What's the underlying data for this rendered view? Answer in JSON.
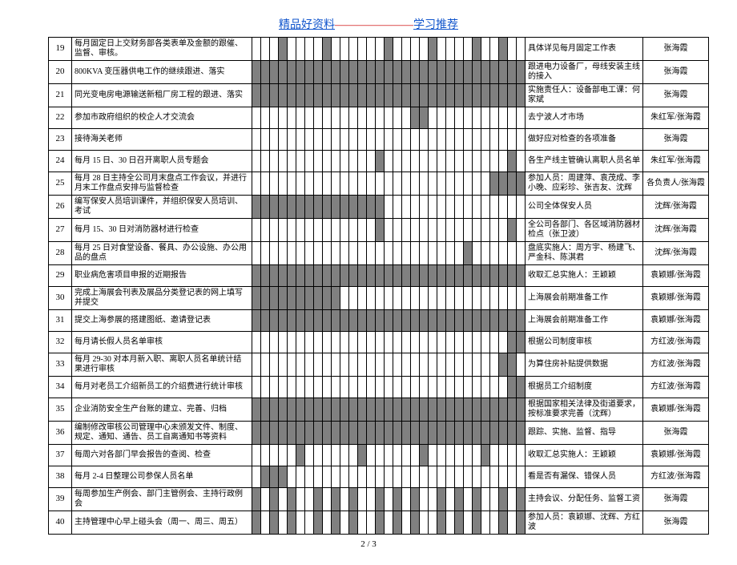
{
  "title_a": "精品好资料",
  "title_dash": "———————",
  "title_b": "学习推荐",
  "footer": "2 / 3",
  "ganttCols": 31,
  "rows": [
    {
      "n": "19",
      "task": "每月固定日上交财务部各类表单及金额的跟催、监督、审核。",
      "fill": [
        3,
        8,
        15,
        20,
        25,
        28
      ],
      "remark": "具体详见每月固定工作表",
      "person": "张海霞"
    },
    {
      "n": "20",
      "task": "800KVA 变压器供电工作的继续跟进、落实",
      "fill": [
        0,
        1,
        2,
        3,
        4,
        5,
        6,
        7,
        8,
        9,
        10,
        11,
        12,
        13,
        14,
        15,
        16,
        17,
        18,
        19,
        20,
        21,
        22,
        23,
        24,
        25,
        26,
        27,
        28,
        29,
        30
      ],
      "remark": "跟进电力设备厂，母线安装主线的接入",
      "person": "张海霞"
    },
    {
      "n": "21",
      "task": "同光变电房电源输送新租厂房工程的跟进、落实",
      "fill": [
        0,
        1,
        2,
        3,
        4,
        5,
        6,
        7,
        8,
        9,
        10,
        11,
        12,
        13,
        14,
        15,
        16,
        17,
        18,
        19,
        20,
        21,
        22,
        23,
        24,
        25,
        26,
        27,
        28,
        29,
        30
      ],
      "remark": "实施责任人：设备部电工课：何家斌",
      "person": "张海霞"
    },
    {
      "n": "22",
      "task": "参加市政府组织的校企人才交流会",
      "fill": [
        18,
        19
      ],
      "remark": "去宁波人才市场",
      "person": "朱红军/张海霞"
    },
    {
      "n": "23",
      "task": "接待海关老师",
      "fill": [],
      "remark": "做好应对检查的各项准备",
      "person": "张海霞"
    },
    {
      "n": "24",
      "task": "每月 15 日、30 日召开离职人员专题会",
      "fill": [
        14,
        29
      ],
      "remark": "各生产线主管确认离职人员名单",
      "person": "朱红军/张海霞"
    },
    {
      "n": "25",
      "task": "每月 28 日主持全公司月末盘点工作会议，并进行月末工作盘点安排与监督检查",
      "fill": [
        27,
        28,
        29,
        30
      ],
      "remark": "参加人员：周建萍、袁茂成、李小晚、应彩珍、张吉友、沈辉",
      "person": "各负责人/张海霞"
    },
    {
      "n": "26",
      "task": "编写保安人员培训课件，并组织保安人员培训、考试",
      "fill": [
        0,
        1,
        2,
        3,
        4,
        5,
        6,
        7,
        8,
        9,
        10,
        11,
        12,
        13,
        14
      ],
      "remark": "公司全体保安人员",
      "person": "沈辉/张海霞"
    },
    {
      "n": "27",
      "task": "每月 15、30 日对消防器材进行检查",
      "fill": [
        14,
        29
      ],
      "remark": "全公司各部门、各区域消防器材检点（张卫波）",
      "person": "沈辉/张海霞"
    },
    {
      "n": "28",
      "task": "每月 25 日对食堂设备、餐具、办公设施、办公用品的盘点",
      "fill": [
        24
      ],
      "remark": "盘底实施人：周方宇、杨建飞、严金科、陈淇君",
      "person": "沈辉/张海霞"
    },
    {
      "n": "29",
      "task": "职业病危害项目申报的近期报告",
      "fill": [
        0,
        1,
        2,
        3,
        4,
        5,
        6,
        7,
        8,
        9,
        10,
        11,
        12,
        13,
        14,
        15,
        16,
        17,
        18,
        19,
        20,
        21,
        22,
        23,
        24,
        25,
        26,
        27,
        28,
        29,
        30
      ],
      "remark": "收取汇总实施人：王颖颖",
      "person": "袁颖娜/张海霞"
    },
    {
      "n": "30",
      "task": "完成上海展会刊表及展品分类登记表的网上填写并提交",
      "fill": [
        0,
        1,
        2,
        3,
        4,
        5,
        6,
        7,
        8,
        9
      ],
      "remark": "上海展会前期准备工作",
      "person": "袁颖娜/张海霞"
    },
    {
      "n": "31",
      "task": "提交上海参展的搭建图纸、邀请登记表",
      "fill": [
        0,
        1,
        2,
        3,
        4,
        5,
        6,
        7,
        8,
        9,
        10,
        11,
        12,
        13,
        14,
        15,
        16,
        17,
        18,
        19,
        20,
        21,
        22,
        23,
        24,
        25,
        26,
        27,
        28,
        29,
        30
      ],
      "remark": "上海展会前期准备工作",
      "person": "袁颖娜/张海霞"
    },
    {
      "n": "32",
      "task": "每月请长假人员名单审核",
      "fill": [
        29,
        30
      ],
      "remark": "根据公司制度审核",
      "person": "方红波/张海霞"
    },
    {
      "n": "33",
      "task": "每月 29-30 对本月新入职、离职人员名单统计结果进行审核",
      "fill": [
        28,
        29
      ],
      "remark": "为算住房补贴提供数据",
      "person": "方红波/张海霞"
    },
    {
      "n": "34",
      "task": "每月对老员工介绍新员工的介绍费进行统计审核",
      "fill": [
        29,
        30
      ],
      "remark": "根据员工介绍制度",
      "person": "方红波/张海霞"
    },
    {
      "n": "35",
      "task": "企业消防安全生产台账的建立、完善、归档",
      "fill": [
        0,
        1,
        2,
        3,
        4,
        5,
        6,
        7,
        8,
        9,
        10,
        11,
        12,
        13,
        14,
        15,
        16,
        17,
        18,
        19,
        20,
        21,
        22,
        23,
        24,
        25,
        26,
        27,
        28,
        29,
        30
      ],
      "remark": "根据国家相关法律及街道要求，按标准要求完善（沈辉）",
      "person": "袁颖娜/张海霞"
    },
    {
      "n": "36",
      "task": "编制修改审核公司管理中心未颁发文件、制度、规定、通知、通告、员工自离通知书等资料",
      "fill": [
        0,
        1,
        2,
        3,
        4,
        5,
        6,
        7,
        8,
        9,
        10,
        11,
        12,
        13,
        14,
        15,
        16,
        17,
        18,
        19,
        20,
        21,
        22,
        23,
        24,
        25,
        26,
        27,
        28,
        29,
        30
      ],
      "remark": "跟踪、实施、监督、指导",
      "person": "张海霞"
    },
    {
      "n": "37",
      "task": "每周六对各部门早会报告的查阅、检查",
      "fill": [
        5,
        12,
        19,
        26
      ],
      "remark": "收取汇总实施人：王颖颖",
      "person": "袁颖娜/张海霞"
    },
    {
      "n": "38",
      "task": "每月 2-4 日整理公司参保人员名单",
      "fill": [
        1,
        2,
        3
      ],
      "remark": "看是否有漏保、错保人员",
      "person": "方红波/张海霞"
    },
    {
      "n": "39",
      "task": "每周参加生产例会、部门主管例会、主持行政例会",
      "fill": [
        0,
        2,
        4,
        7,
        9,
        11,
        14,
        16,
        18,
        21,
        23,
        25,
        28,
        30
      ],
      "remark": "主持会议、分配任务、监督工资",
      "person": "张海霞"
    },
    {
      "n": "40",
      "task": "主持管理中心早上碰头会（周一、周三、周五）",
      "fill": [
        0,
        2,
        4,
        7,
        9,
        11,
        14,
        16,
        18,
        21,
        23,
        25,
        28,
        30
      ],
      "remark": "参加人员：袁颖娜、沈辉、方红波",
      "person": "张海霞"
    }
  ]
}
